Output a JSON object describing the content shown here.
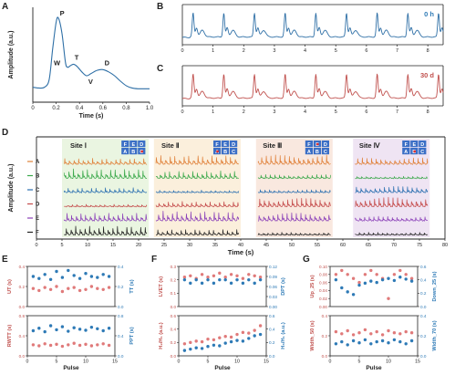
{
  "colors": {
    "axis": "#222222",
    "blue_trace": "#2e6fa6",
    "red_trace": "#c0504d",
    "red_dot": "#e07a7a",
    "blue_dot": "#2e7ab6",
    "label_0h": "#2e7ab6",
    "label_30d": "#c0504d",
    "site1_bg": "#eaf5e1",
    "site2_bg": "#fbefdc",
    "site3_bg": "#f9e8df",
    "site4_bg": "#efe4f3",
    "sensor_box": "#3b6fc6",
    "traceA": "#e0813a",
    "traceB": "#3aa84a",
    "traceC": "#2a6fb0",
    "traceD": "#c44a4a",
    "traceE": "#8a3fb8",
    "traceF": "#222222"
  },
  "chart_data": [
    {
      "panel": "A",
      "type": "line",
      "xlabel": "Time (s)",
      "ylabel": "Amplitude (a.u.)",
      "xlim": [
        0,
        1
      ],
      "xticks": [
        "0",
        "0.2",
        "0.4",
        "0.6",
        "0.8",
        "1.0"
      ],
      "x": [
        0,
        0.05,
        0.1,
        0.14,
        0.17,
        0.2,
        0.22,
        0.25,
        0.28,
        0.3,
        0.32,
        0.35,
        0.38,
        0.42,
        0.46,
        0.5,
        0.55,
        0.6,
        0.65,
        0.7,
        0.75,
        0.8,
        0.85,
        0.9,
        0.95,
        1.0
      ],
      "y": [
        0.1,
        0.09,
        0.1,
        0.2,
        0.6,
        0.95,
        1.0,
        0.8,
        0.42,
        0.36,
        0.38,
        0.4,
        0.37,
        0.3,
        0.25,
        0.28,
        0.32,
        0.33,
        0.3,
        0.25,
        0.18,
        0.12,
        0.09,
        0.08,
        0.08,
        0.08
      ],
      "annotations": [
        "P",
        "W",
        "T",
        "V",
        "D"
      ]
    },
    {
      "panel": "B",
      "type": "line",
      "label": "0 h",
      "xlim": [
        0,
        8.5
      ],
      "xticks": [
        "0",
        "1",
        "2",
        "3",
        "4",
        "5",
        "6",
        "7",
        "8"
      ],
      "pulse_times": [
        0.3,
        1.3,
        2.3,
        3.3,
        4.3,
        5.3,
        6.3,
        7.3,
        8.3
      ]
    },
    {
      "panel": "C",
      "type": "line",
      "label": "30 d",
      "xlim": [
        0,
        8.5
      ],
      "xticks": [
        "0",
        "1",
        "2",
        "3",
        "4",
        "5",
        "6",
        "7",
        "8"
      ],
      "pulse_times": [
        0.3,
        1.3,
        2.3,
        3.3,
        4.3,
        5.3,
        6.3,
        7.3,
        8.3
      ]
    },
    {
      "panel": "D",
      "type": "line",
      "xlabel": "Time (s)",
      "ylabel": "Amplitude (a.u.)",
      "xlim": [
        0,
        80
      ],
      "xticks": [
        "0",
        "5",
        "10",
        "15",
        "20",
        "25",
        "30",
        "35",
        "40",
        "45",
        "50",
        "55",
        "60",
        "65",
        "70",
        "75",
        "80"
      ],
      "channels": [
        "A",
        "B",
        "C",
        "D",
        "E",
        "F"
      ],
      "sites": [
        {
          "name": "Site Ⅰ",
          "range": [
            5,
            22
          ],
          "sensor_grid": [
            [
              "F",
              "E",
              "D"
            ],
            [
              "A",
              "B",
              "C"
            ]
          ]
        },
        {
          "name": "Site Ⅱ",
          "range": [
            23,
            40
          ],
          "sensor_grid": [
            [
              "F",
              "E",
              "D"
            ],
            [
              "A",
              "B",
              "C"
            ]
          ]
        },
        {
          "name": "Site Ⅲ",
          "range": [
            43,
            58
          ],
          "sensor_grid": [
            [
              "F",
              "E",
              "D"
            ],
            [
              "A",
              "B",
              "C"
            ]
          ]
        },
        {
          "name": "Site Ⅳ",
          "range": [
            62,
            77
          ],
          "sensor_grid": [
            [
              "F",
              "E",
              "D"
            ],
            [
              "A",
              "B",
              "C"
            ]
          ]
        }
      ]
    },
    {
      "panel": "E",
      "type": "scatter",
      "xlabel": "Pulse",
      "xlim": [
        0,
        15
      ],
      "xticks": [
        "0",
        "5",
        "10",
        "15"
      ],
      "subplots": [
        {
          "left_label": "UT (s)",
          "right_label": "TT (s)",
          "left_ylim": [
            0,
            0.4
          ],
          "left_ticks": [
            "0.0",
            "0.2",
            "0.4"
          ],
          "right_ylim": [
            0,
            0.4
          ],
          "right_ticks": [
            "0.0",
            "0.2",
            "0.4"
          ],
          "left_x": [
            1,
            2,
            3,
            4,
            5,
            6,
            7,
            8,
            9,
            10,
            11,
            12,
            13,
            14
          ],
          "left_y": [
            0.18,
            0.16,
            0.19,
            0.17,
            0.2,
            0.15,
            0.18,
            0.19,
            0.16,
            0.17,
            0.2,
            0.18,
            0.17,
            0.19
          ],
          "right_x": [
            1,
            2,
            3,
            4,
            5,
            6,
            7,
            8,
            9,
            10,
            11,
            12,
            13,
            14
          ],
          "right_y": [
            0.3,
            0.28,
            0.32,
            0.27,
            0.35,
            0.29,
            0.36,
            0.31,
            0.28,
            0.33,
            0.3,
            0.29,
            0.32,
            0.3
          ]
        },
        {
          "left_label": "RWTT (s)",
          "right_label": "PPT (s)",
          "left_ylim": [
            0,
            0.8
          ],
          "left_ticks": [
            "0.0",
            "0.4",
            "0.8"
          ],
          "right_ylim": [
            0,
            0.8
          ],
          "right_ticks": [
            "0.0",
            "0.4",
            "0.8"
          ],
          "left_x": [
            1,
            2,
            3,
            4,
            5,
            6,
            7,
            8,
            9,
            10,
            11,
            12,
            13,
            14
          ],
          "left_y": [
            0.22,
            0.2,
            0.24,
            0.21,
            0.23,
            0.19,
            0.22,
            0.25,
            0.21,
            0.23,
            0.2,
            0.22,
            0.24,
            0.21
          ],
          "right_x": [
            1,
            2,
            3,
            4,
            5,
            6,
            7,
            8,
            9,
            10,
            11,
            12,
            13,
            14
          ],
          "right_y": [
            0.5,
            0.55,
            0.48,
            0.6,
            0.52,
            0.58,
            0.49,
            0.56,
            0.53,
            0.51,
            0.57,
            0.54,
            0.5,
            0.55
          ]
        }
      ]
    },
    {
      "panel": "F",
      "type": "scatter",
      "xlabel": "Pulse",
      "xlim": [
        0,
        15
      ],
      "xticks": [
        "0",
        "5",
        "10",
        "15"
      ],
      "subplots": [
        {
          "left_label": "LVET (s)",
          "right_label": "DPT (s)",
          "left_ylim": [
            0,
            0.3
          ],
          "left_ticks": [
            "0.0",
            "0.1",
            "0.2",
            "0.3"
          ],
          "right_ylim": [
            0,
            0.12
          ],
          "right_ticks": [
            "0.00",
            "0.03",
            "0.06",
            "0.09",
            "0.12"
          ],
          "left_x": [
            1,
            2,
            3,
            4,
            5,
            6,
            7,
            8,
            9,
            10,
            11,
            12,
            13,
            14
          ],
          "left_y": [
            0.22,
            0.23,
            0.21,
            0.24,
            0.22,
            0.23,
            0.25,
            0.22,
            0.24,
            0.23,
            0.21,
            0.24,
            0.23,
            0.22
          ],
          "right_x": [
            1,
            2,
            3,
            4,
            5,
            6,
            7,
            8,
            9,
            10,
            11,
            12,
            13,
            14
          ],
          "right_y": [
            0.08,
            0.07,
            0.08,
            0.07,
            0.08,
            0.07,
            0.08,
            0.08,
            0.07,
            0.08,
            0.07,
            0.08,
            0.07,
            0.08
          ]
        },
        {
          "left_label": "H₂/H₁ (a.u.)",
          "right_label": "H₃/H₁ (a.u.)",
          "left_ylim": [
            0,
            0.6
          ],
          "left_ticks": [
            "0.0",
            "0.2",
            "0.4",
            "0.6"
          ],
          "right_ylim": [
            0,
            0.6
          ],
          "right_ticks": [
            "0.0",
            "0.2",
            "0.4",
            "0.6"
          ],
          "left_x": [
            1,
            2,
            3,
            4,
            5,
            6,
            7,
            8,
            9,
            10,
            11,
            12,
            13,
            14
          ],
          "left_y": [
            0.18,
            0.2,
            0.22,
            0.21,
            0.25,
            0.24,
            0.27,
            0.29,
            0.28,
            0.32,
            0.35,
            0.34,
            0.38,
            0.45
          ],
          "right_x": [
            1,
            2,
            3,
            4,
            5,
            6,
            7,
            8,
            9,
            10,
            11,
            12,
            13,
            14
          ],
          "right_y": [
            0.08,
            0.1,
            0.12,
            0.11,
            0.14,
            0.16,
            0.15,
            0.19,
            0.21,
            0.23,
            0.22,
            0.26,
            0.3,
            0.32
          ]
        }
      ]
    },
    {
      "panel": "G",
      "type": "scatter",
      "xlabel": "Pulse",
      "xlim": [
        0,
        15
      ],
      "xticks": [
        "0",
        "5",
        "10",
        "15"
      ],
      "subplots": [
        {
          "left_label": "Up_25 (s)",
          "right_label": "Down_25 (s)",
          "left_ylim": [
            0,
            0.1
          ],
          "left_ticks": [
            "0.00",
            "0.02",
            "0.04",
            "0.06",
            "0.08",
            "0.10"
          ],
          "right_ylim": [
            0,
            0.6
          ],
          "right_ticks": [
            "0.0",
            "0.2",
            "0.4",
            "0.6"
          ],
          "left_x": [
            1,
            2,
            3,
            4,
            5,
            6,
            7,
            8,
            9,
            10,
            11,
            12,
            13,
            14
          ],
          "left_y": [
            0.08,
            0.09,
            0.08,
            0.07,
            0.06,
            0.08,
            0.09,
            0.08,
            0.07,
            0.02,
            0.08,
            0.09,
            0.08,
            0.07
          ],
          "right_x": [
            1,
            2,
            3,
            4,
            5,
            6,
            7,
            8,
            9,
            10,
            11,
            12,
            13,
            14
          ],
          "right_y": [
            0.4,
            0.28,
            0.22,
            0.18,
            0.32,
            0.35,
            0.38,
            0.36,
            0.4,
            0.42,
            0.39,
            0.44,
            0.41,
            0.38
          ]
        },
        {
          "left_label": "Width_50 (s)",
          "right_label": "Width_70 (s)",
          "left_ylim": [
            0,
            0.4
          ],
          "left_ticks": [
            "0.0",
            "0.2",
            "0.4"
          ],
          "right_ylim": [
            0,
            0.4
          ],
          "right_ticks": [
            "0.0",
            "0.2",
            "0.4"
          ],
          "left_x": [
            1,
            2,
            3,
            4,
            5,
            6,
            7,
            8,
            9,
            10,
            11,
            12,
            13,
            14
          ],
          "left_y": [
            0.24,
            0.22,
            0.25,
            0.21,
            0.23,
            0.26,
            0.22,
            0.24,
            0.21,
            0.25,
            0.23,
            0.22,
            0.24,
            0.23
          ],
          "right_x": [
            1,
            2,
            3,
            4,
            5,
            6,
            7,
            8,
            9,
            10,
            11,
            12,
            13,
            14
          ],
          "right_y": [
            0.12,
            0.14,
            0.11,
            0.15,
            0.13,
            0.16,
            0.12,
            0.14,
            0.15,
            0.13,
            0.16,
            0.14,
            0.12,
            0.15
          ]
        }
      ]
    }
  ],
  "panel_letters": [
    "A",
    "B",
    "C",
    "D",
    "E",
    "F",
    "G"
  ]
}
